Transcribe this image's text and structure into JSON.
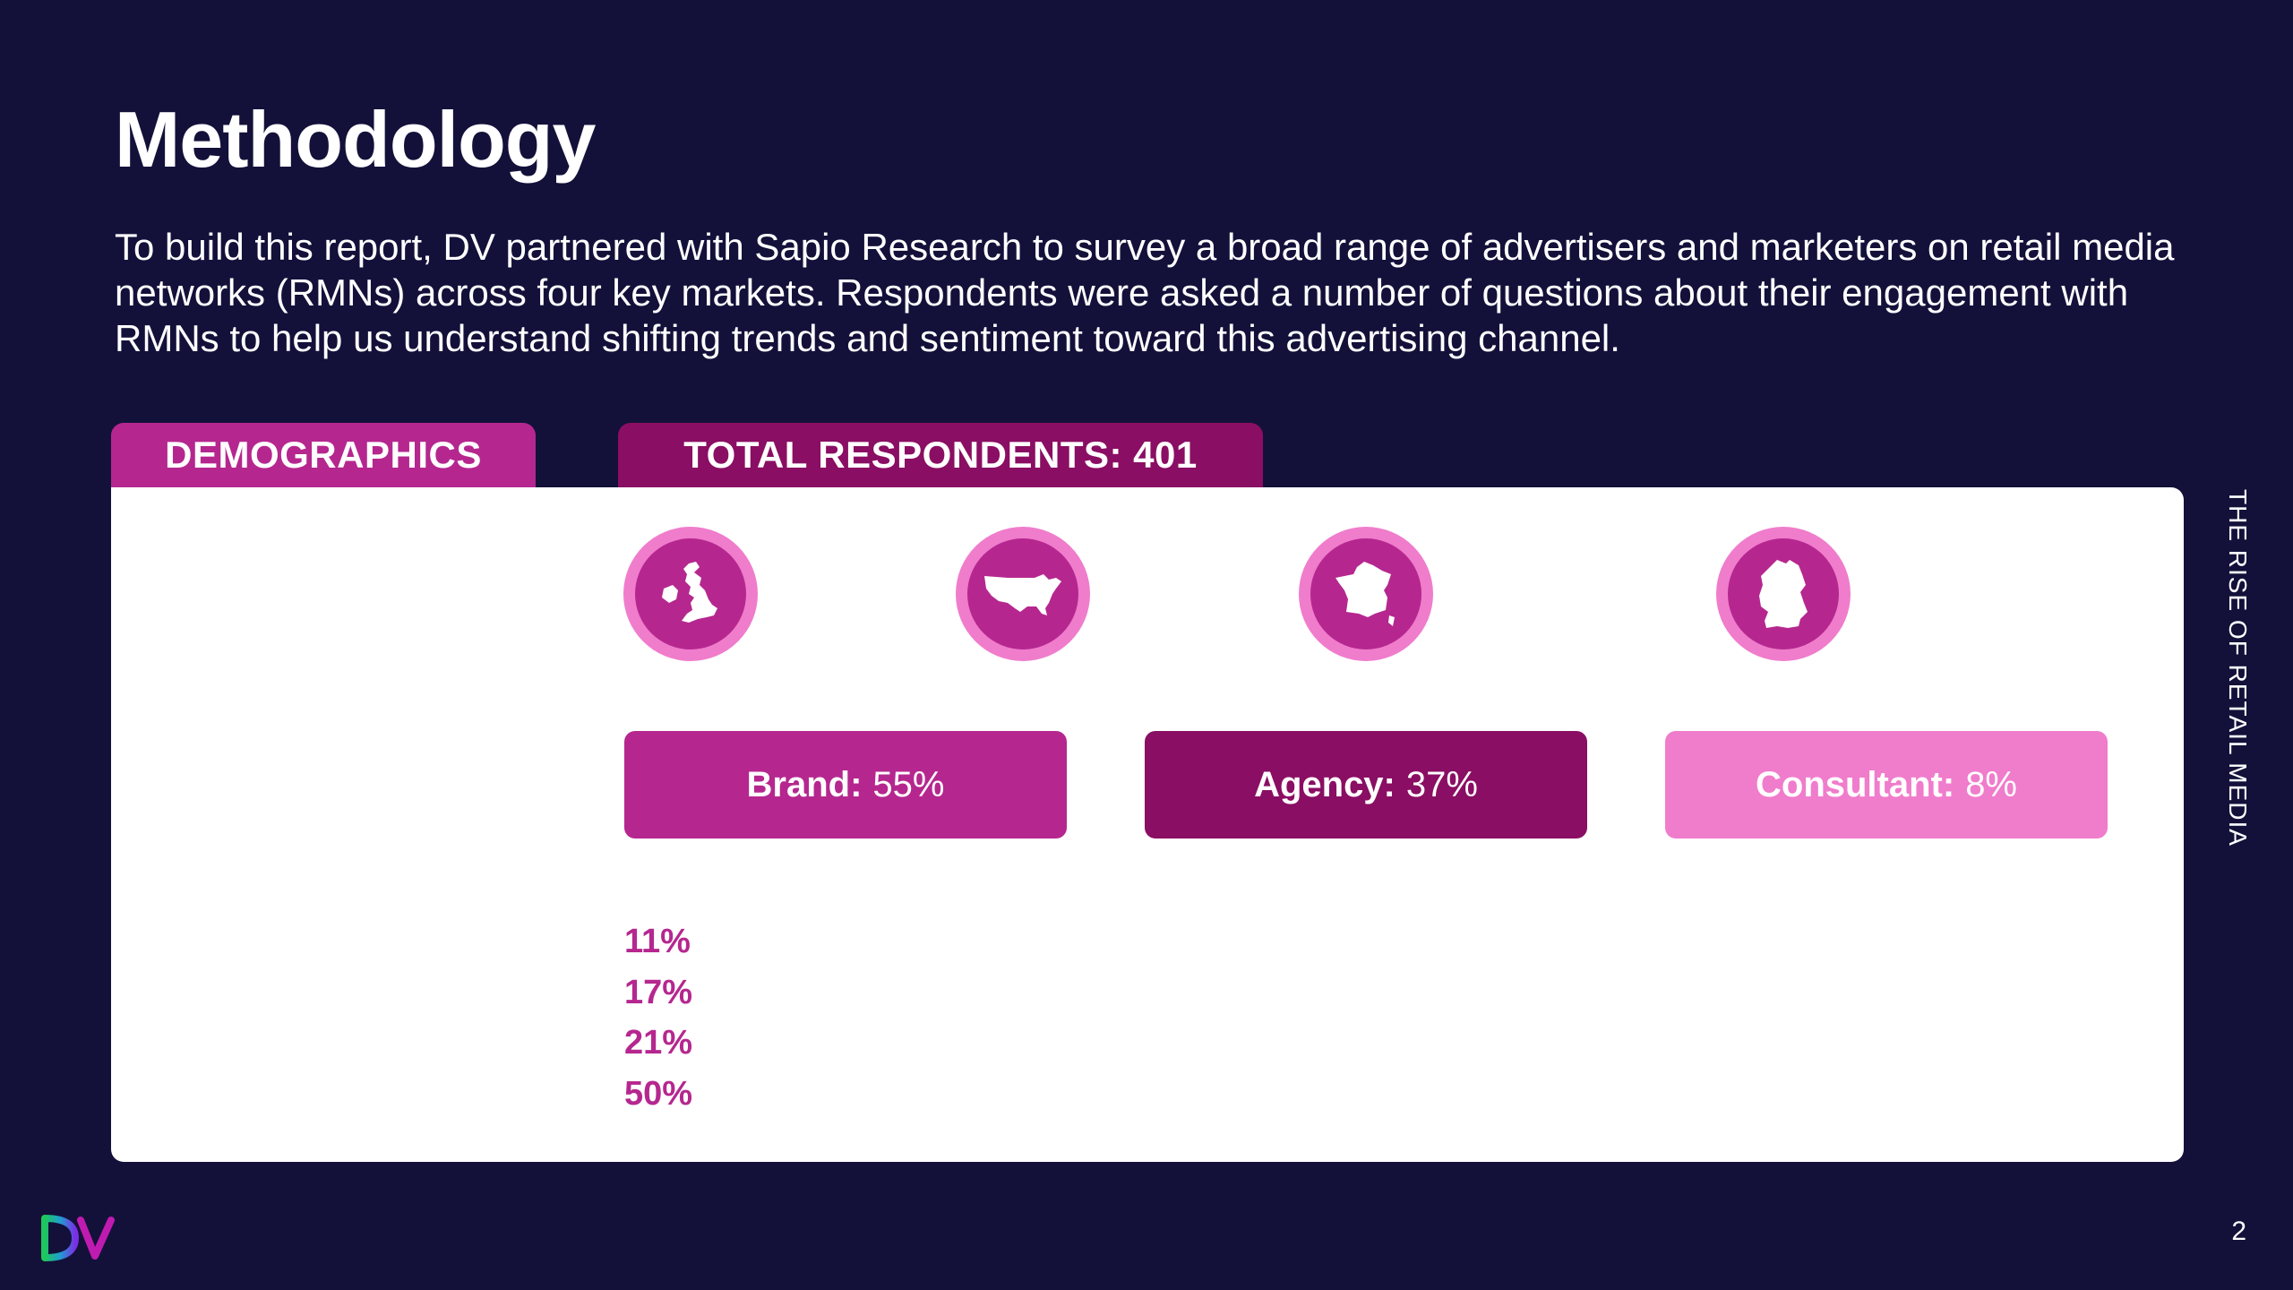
{
  "page": {
    "title": "Methodology",
    "intro": "To build this report, DV partnered with Sapio Research to survey a broad range of advertisers and marketers on retail media networks (RMNs) across four key markets. Respondents were asked a number of questions about their engagement with RMNs to help us understand shifting trends and sentiment toward this advertising channel.",
    "side_label": "THE RISE OF RETAIL MEDIA",
    "page_number": "2"
  },
  "tabs": {
    "demographics": "DEMOGRAPHICS",
    "total_respondents": "TOTAL RESPONDENTS: 401"
  },
  "roles": [
    {
      "label": "Brand:",
      "value": "55%"
    },
    {
      "label": "Agency:",
      "value": "37%"
    },
    {
      "label": "Consultant:",
      "value": "8%"
    }
  ],
  "percentages": [
    "11%",
    "17%",
    "21%",
    "50%"
  ],
  "colors": {
    "background": "#13113a",
    "magenta": "#b5278f",
    "plum": "#8a0e63",
    "pink": "#f07ccc",
    "logo_green": "#1ec85a",
    "logo_purple": "#7a2ee6"
  },
  "icons": [
    "uk-map-icon",
    "usa-map-icon",
    "france-map-icon",
    "germany-map-icon"
  ]
}
